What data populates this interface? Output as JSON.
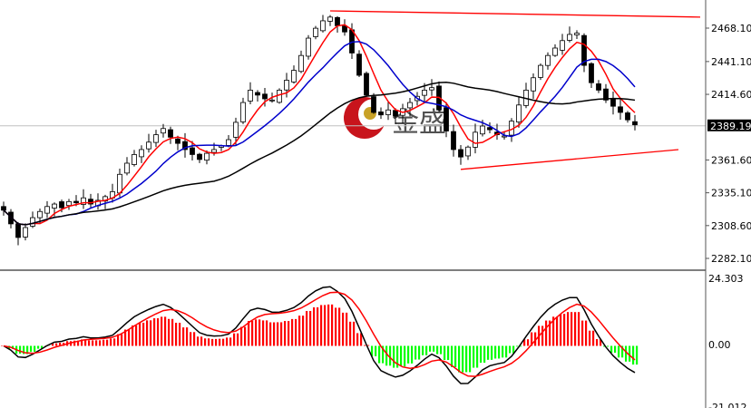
{
  "chart_data": {
    "type": "candlestick",
    "price_axis": {
      "ticks": [
        "2468.10",
        "2441.10",
        "2414.60",
        "2361.60",
        "2335.10",
        "2308.60",
        "2282.10"
      ],
      "range": [
        2282.1,
        2468.1
      ],
      "current_price": "2389.19"
    },
    "closes": [
      2321,
      2310,
      2299,
      2307,
      2315,
      2320,
      2324,
      2326,
      2323,
      2328,
      2327,
      2331,
      2326,
      2329,
      2332,
      2336,
      2350,
      2359,
      2366,
      2370,
      2376,
      2382,
      2387,
      2380,
      2375,
      2370,
      2366,
      2362,
      2367,
      2370,
      2373,
      2378,
      2392,
      2408,
      2418,
      2414,
      2411,
      2410,
      2418,
      2426,
      2434,
      2446,
      2460,
      2468,
      2474,
      2477,
      2470,
      2465,
      2448,
      2430,
      2414,
      2400,
      2398,
      2402,
      2397,
      2403,
      2408,
      2413,
      2418,
      2420,
      2402,
      2385,
      2370,
      2364,
      2372,
      2384,
      2389,
      2386,
      2382,
      2381,
      2393,
      2406,
      2418,
      2428,
      2438,
      2446,
      2452,
      2458,
      2463,
      2464,
      2438,
      2424,
      2418,
      2410,
      2405,
      2400,
      2394,
      2390
    ],
    "moving_averages": [
      {
        "period": 5,
        "color": "#ff0000"
      },
      {
        "period": 10,
        "color": "#0000cc"
      },
      {
        "period": 30,
        "color": "#000000"
      }
    ],
    "trendlines": [
      {
        "from": [
          45,
          2482
        ],
        "to": [
          96,
          2477
        ],
        "color": "#ff0000"
      },
      {
        "from": [
          63,
          2354
        ],
        "to": [
          93,
          2370
        ],
        "color": "#ff0000"
      }
    ],
    "macd": {
      "ticks": [
        "24.303",
        "0.00",
        "-21.012"
      ],
      "range": [
        -21.012,
        24.303
      ],
      "positive_color": "#ff0000",
      "negative_color": "#00ff00",
      "line_color": "#000000",
      "signal_color": "#ff0000"
    }
  },
  "watermark": {
    "text": "金盛"
  }
}
